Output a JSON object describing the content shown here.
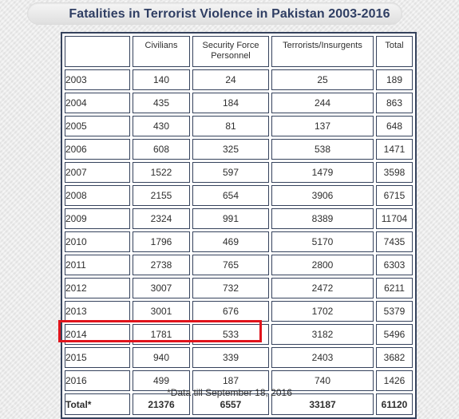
{
  "title": "Fatalities in Terrorist Violence in Pakistan 2003-2016",
  "columns": {
    "year": "",
    "civilians": "Civilians",
    "security_line1": "Security Force",
    "security_line2": "Personnel",
    "terrorists": "Terrorists/Insurgents",
    "total": "Total"
  },
  "rows": [
    {
      "year": "2003",
      "civilians": "140",
      "security": "24",
      "terrorists": "25",
      "total": "189"
    },
    {
      "year": "2004",
      "civilians": "435",
      "security": "184",
      "terrorists": "244",
      "total": "863"
    },
    {
      "year": "2005",
      "civilians": "430",
      "security": "81",
      "terrorists": "137",
      "total": "648"
    },
    {
      "year": "2006",
      "civilians": "608",
      "security": "325",
      "terrorists": "538",
      "total": "1471"
    },
    {
      "year": "2007",
      "civilians": "1522",
      "security": "597",
      "terrorists": "1479",
      "total": "3598"
    },
    {
      "year": "2008",
      "civilians": "2155",
      "security": "654",
      "terrorists": "3906",
      "total": "6715"
    },
    {
      "year": "2009",
      "civilians": "2324",
      "security": "991",
      "terrorists": "8389",
      "total": "11704"
    },
    {
      "year": "2010",
      "civilians": "1796",
      "security": "469",
      "terrorists": "5170",
      "total": "7435"
    },
    {
      "year": "2011",
      "civilians": "2738",
      "security": "765",
      "terrorists": "2800",
      "total": "6303"
    },
    {
      "year": "2012",
      "civilians": "3007",
      "security": "732",
      "terrorists": "2472",
      "total": "6211"
    },
    {
      "year": "2013",
      "civilians": "3001",
      "security": "676",
      "terrorists": "1702",
      "total": "5379"
    },
    {
      "year": "2014",
      "civilians": "1781",
      "security": "533",
      "terrorists": "3182",
      "total": "5496"
    },
    {
      "year": "2015",
      "civilians": "940",
      "security": "339",
      "terrorists": "2403",
      "total": "3682"
    },
    {
      "year": "2016",
      "civilians": "499",
      "security": "187",
      "terrorists": "740",
      "total": "1426"
    }
  ],
  "total_row": {
    "label": "Total*",
    "civilians": "21376",
    "security": "6557",
    "terrorists": "33187",
    "total": "61120"
  },
  "footnote": "*Data till September 18, 2016",
  "colors": {
    "border": "#35425c",
    "title": "#2f3e63",
    "highlight": "#e0141c"
  }
}
